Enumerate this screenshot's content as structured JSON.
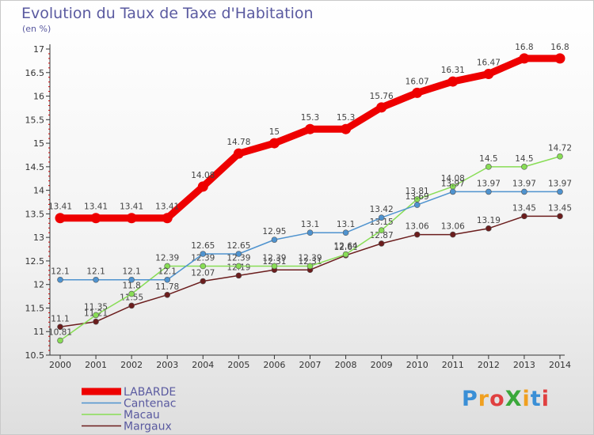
{
  "title": "Evolution du Taux de Taxe d'Habitation",
  "subtitle": "(en %)",
  "logo": {
    "text": "ProXiti",
    "letter_colors": [
      "#3a8fd6",
      "#f0a020",
      "#e04040",
      "#3aa83a",
      "#f0a020",
      "#3a8fd6",
      "#e04040"
    ]
  },
  "chart_data": {
    "type": "line",
    "title": "Evolution du Taux de Taxe d'Habitation",
    "ylabel": "(en %)",
    "xlabel": "",
    "x": [
      "2000",
      "2001",
      "2002",
      "2003",
      "2004",
      "2005",
      "2006",
      "2007",
      "2008",
      "2009",
      "2010",
      "2011",
      "2012",
      "2013",
      "2014"
    ],
    "ylim": [
      10.5,
      17
    ],
    "yticks": [
      "10.5",
      "11",
      "11.5",
      "12",
      "12.5",
      "13",
      "13.5",
      "14",
      "14.5",
      "15",
      "15.5",
      "16",
      "16.5",
      "17"
    ],
    "grid": false,
    "legend_position": "bottom-left",
    "series": [
      {
        "name": "LABARDE",
        "color": "#ee0000",
        "values": [
          13.41,
          13.41,
          13.41,
          13.41,
          14.08,
          14.78,
          15,
          15.3,
          15.3,
          15.76,
          16.07,
          16.31,
          16.47,
          16.8,
          16.8
        ],
        "labels": [
          "13.41",
          "13.41",
          "13.41",
          "13.41",
          "14.08",
          "14.78",
          "15",
          "15.3",
          "15.3",
          "15.76",
          "16.07",
          "16.31",
          "16.47",
          "16.8",
          "16.8"
        ]
      },
      {
        "name": "Cantenac",
        "color": "#4f93cf",
        "values": [
          12.1,
          12.1,
          12.1,
          12.1,
          12.65,
          12.65,
          12.95,
          13.1,
          13.1,
          13.42,
          13.69,
          13.97,
          13.97,
          13.97,
          13.97
        ],
        "labels": [
          "12.1",
          "12.1",
          "12.1",
          "12.1",
          "12.65",
          "12.65",
          "12.95",
          "13.1",
          "13.1",
          "13.42",
          "13.69",
          "13.97",
          "13.97",
          "13.97",
          "13.97"
        ]
      },
      {
        "name": "Macau",
        "color": "#88dd55",
        "values": [
          10.81,
          11.35,
          11.8,
          12.39,
          12.39,
          12.39,
          12.39,
          12.39,
          12.64,
          13.15,
          13.81,
          14.08,
          14.5,
          14.5,
          14.72
        ],
        "labels": [
          "10.81",
          "11.35",
          "11.8",
          "12.39",
          "12.39",
          "12.39",
          "12.39",
          "12.39",
          "12.64",
          "13.15",
          "13.81",
          "14.08",
          "14.5",
          "14.5",
          "14.72"
        ]
      },
      {
        "name": "Margaux",
        "color": "#6b1d1d",
        "values": [
          11.1,
          11.21,
          11.55,
          11.78,
          12.07,
          12.19,
          12.31,
          12.31,
          12.62,
          12.87,
          13.06,
          13.06,
          13.19,
          13.45,
          13.45
        ],
        "labels": [
          "11.1",
          "11.21",
          "11.55",
          "11.78",
          "12.07",
          "12.19",
          "12.31",
          "12.31",
          "12.62",
          "12.87",
          "13.06",
          "13.06",
          "13.19",
          "13.45",
          "13.45"
        ]
      }
    ]
  }
}
